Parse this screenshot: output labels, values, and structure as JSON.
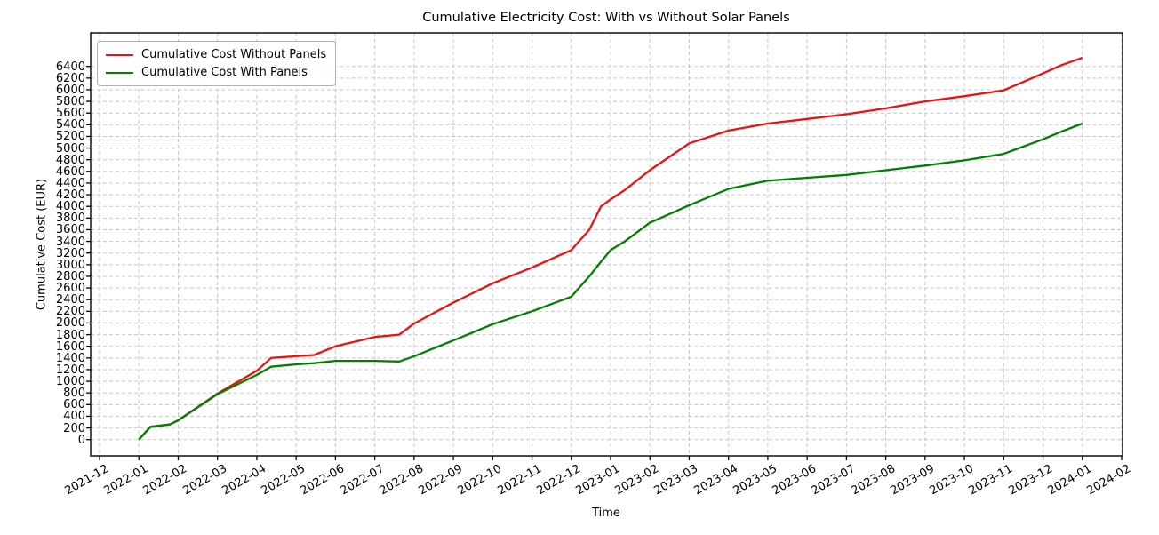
{
  "chart_data": {
    "type": "line",
    "title": "Cumulative Electricity Cost: With vs Without Solar Panels",
    "xlabel": "Time",
    "ylabel": "Cumulative Cost (EUR)",
    "grid": true,
    "grid_color": "#c7c7c7",
    "background": "#ffffff",
    "legend_position": "upper left",
    "x_tick_labels": [
      "2021-12",
      "2022-01",
      "2022-02",
      "2022-03",
      "2022-04",
      "2022-05",
      "2022-06",
      "2022-07",
      "2022-08",
      "2022-09",
      "2022-10",
      "2022-11",
      "2022-12",
      "2023-01",
      "2023-02",
      "2023-03",
      "2023-04",
      "2023-05",
      "2023-06",
      "2023-07",
      "2023-08",
      "2023-09",
      "2023-10",
      "2023-11",
      "2023-12",
      "2024-01",
      "2024-02"
    ],
    "y_ticks": {
      "min": 0,
      "max": 6400,
      "step": 200
    },
    "ylim": [
      -280,
      6970
    ],
    "x": [
      "2022-01-01",
      "2022-01-10",
      "2022-01-25",
      "2022-02-01",
      "2022-03-01",
      "2022-04-01",
      "2022-04-12",
      "2022-05-01",
      "2022-05-15",
      "2022-06-01",
      "2022-07-01",
      "2022-07-20",
      "2022-08-01",
      "2022-09-01",
      "2022-10-01",
      "2022-11-01",
      "2022-12-01",
      "2022-12-15",
      "2022-12-24",
      "2023-01-01",
      "2023-01-12",
      "2023-02-01",
      "2023-03-01",
      "2023-04-01",
      "2023-05-01",
      "2023-06-01",
      "2023-07-01",
      "2023-08-01",
      "2023-09-01",
      "2023-10-01",
      "2023-11-01",
      "2023-12-01",
      "2023-12-15",
      "2024-01-01"
    ],
    "series": [
      {
        "name": "Cumulative Cost Without Panels",
        "color": "#ee1111",
        "values": [
          0,
          220,
          260,
          330,
          790,
          1180,
          1400,
          1430,
          1450,
          1600,
          1760,
          1800,
          1990,
          2350,
          2680,
          2950,
          3250,
          3600,
          4000,
          4120,
          4280,
          4620,
          5080,
          5300,
          5420,
          5500,
          5580,
          5680,
          5800,
          5890,
          5990,
          6280,
          6420,
          6550
        ]
      },
      {
        "name": "Cumulative Cost With Panels",
        "color": "#008000",
        "values": [
          0,
          220,
          260,
          330,
          780,
          1110,
          1250,
          1290,
          1310,
          1350,
          1350,
          1340,
          1430,
          1700,
          1980,
          2200,
          2450,
          2800,
          3050,
          3250,
          3400,
          3720,
          4020,
          4300,
          4440,
          4490,
          4540,
          4620,
          4700,
          4790,
          4900,
          5150,
          5280,
          5420
        ]
      }
    ]
  }
}
